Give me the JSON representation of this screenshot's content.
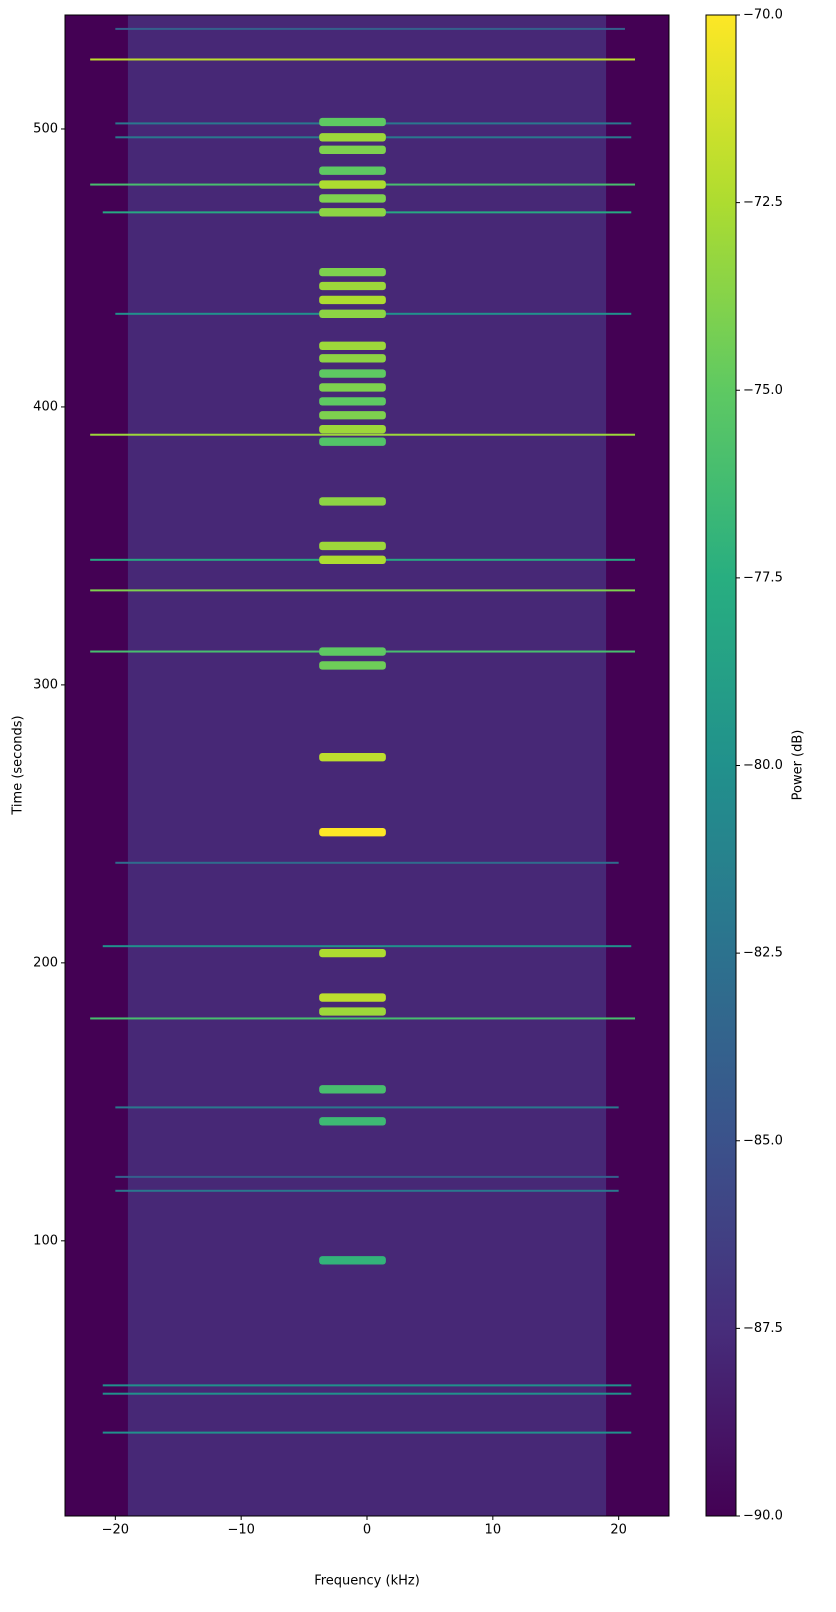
{
  "chart_data": {
    "type": "spectrogram",
    "xlabel": "Frequency (kHz)",
    "ylabel": "Time (seconds)",
    "colorbar_label": "Power (dB)",
    "colormap": "viridis",
    "xlim": [
      -24,
      24
    ],
    "xticks": [
      {
        "value": -20,
        "label": "−20"
      },
      {
        "value": -10,
        "label": "−10"
      },
      0,
      10,
      20
    ],
    "ylim": [
      1,
      541
    ],
    "yticks": [
      100,
      200,
      300,
      400,
      500
    ],
    "clim": [
      -90,
      -70
    ],
    "cticks": [
      {
        "value": -70,
        "label": "−70.0"
      },
      {
        "value": -72.5,
        "label": "−72.5"
      },
      {
        "value": -75,
        "label": "−75.0"
      },
      {
        "value": -77.5,
        "label": "−77.5"
      },
      {
        "value": -80,
        "label": "−80.0"
      },
      {
        "value": -82.5,
        "label": "−82.5"
      },
      {
        "value": -85,
        "label": "−85.0"
      },
      {
        "value": -87.5,
        "label": "−87.5"
      },
      {
        "value": -90,
        "label": "−90.0"
      }
    ],
    "background_power": -90,
    "noise_band": {
      "f": [
        -19,
        19
      ],
      "power": -87.8
    },
    "bursts": [
      {
        "t": [
          501,
          504
        ],
        "f": [
          -3.8,
          1.5
        ],
        "power": -75
      },
      {
        "t": [
          495.5,
          498.5
        ],
        "f": [
          -3.8,
          1.5
        ],
        "power": -73
      },
      {
        "t": [
          491,
          494
        ],
        "f": [
          -3.8,
          1.5
        ],
        "power": -74
      },
      {
        "t": [
          483.5,
          486.5
        ],
        "f": [
          -3.8,
          1.5
        ],
        "power": -75
      },
      {
        "t": [
          478.5,
          481.5
        ],
        "f": [
          -3.8,
          1.5
        ],
        "power": -72.5
      },
      {
        "t": [
          473.5,
          476.5
        ],
        "f": [
          -3.8,
          1.5
        ],
        "power": -74
      },
      {
        "t": [
          468.5,
          471.5
        ],
        "f": [
          -3.8,
          1.5
        ],
        "power": -73.5
      },
      {
        "t": [
          447,
          450
        ],
        "f": [
          -3.8,
          1.5
        ],
        "power": -74
      },
      {
        "t": [
          442,
          445
        ],
        "f": [
          -3.8,
          1.5
        ],
        "power": -73
      },
      {
        "t": [
          437,
          440
        ],
        "f": [
          -3.8,
          1.5
        ],
        "power": -72.5
      },
      {
        "t": [
          432,
          435
        ],
        "f": [
          -3.8,
          1.5
        ],
        "power": -73.5
      },
      {
        "t": [
          420.5,
          423.5
        ],
        "f": [
          -3.8,
          1.5
        ],
        "power": -73
      },
      {
        "t": [
          416,
          419
        ],
        "f": [
          -3.8,
          1.5
        ],
        "power": -73.5
      },
      {
        "t": [
          410.5,
          413.5
        ],
        "f": [
          -3.8,
          1.5
        ],
        "power": -75
      },
      {
        "t": [
          405.5,
          408.5
        ],
        "f": [
          -3.8,
          1.5
        ],
        "power": -74
      },
      {
        "t": [
          400.5,
          403.5
        ],
        "f": [
          -3.8,
          1.5
        ],
        "power": -75
      },
      {
        "t": [
          395.5,
          398.5
        ],
        "f": [
          -3.8,
          1.5
        ],
        "power": -74
      },
      {
        "t": [
          390.5,
          393.5
        ],
        "f": [
          -3.8,
          1.5
        ],
        "power": -73
      },
      {
        "t": [
          386,
          389
        ],
        "f": [
          -3.8,
          1.5
        ],
        "power": -75.5
      },
      {
        "t": [
          364.5,
          367.5
        ],
        "f": [
          -3.8,
          1.5
        ],
        "power": -73.5
      },
      {
        "t": [
          348.5,
          351.5
        ],
        "f": [
          -3.8,
          1.5
        ],
        "power": -73
      },
      {
        "t": [
          343.5,
          346.5
        ],
        "f": [
          -3.8,
          1.5
        ],
        "power": -72.5
      },
      {
        "t": [
          310.5,
          313.5
        ],
        "f": [
          -3.8,
          1.5
        ],
        "power": -75
      },
      {
        "t": [
          305.5,
          308.5
        ],
        "f": [
          -3.8,
          1.5
        ],
        "power": -74.5
      },
      {
        "t": [
          272.5,
          275.5
        ],
        "f": [
          -3.8,
          1.5
        ],
        "power": -72
      },
      {
        "t": [
          245.5,
          248.5
        ],
        "f": [
          -3.8,
          1.5
        ],
        "power": -70
      },
      {
        "t": [
          202,
          205
        ],
        "f": [
          -3.8,
          1.5
        ],
        "power": -72.5
      },
      {
        "t": [
          186,
          189
        ],
        "f": [
          -3.8,
          1.5
        ],
        "power": -72
      },
      {
        "t": [
          181,
          184
        ],
        "f": [
          -3.8,
          1.5
        ],
        "power": -73
      },
      {
        "t": [
          153,
          156
        ],
        "f": [
          -3.8,
          1.5
        ],
        "power": -76
      },
      {
        "t": [
          141.5,
          144.5
        ],
        "f": [
          -3.8,
          1.5
        ],
        "power": -76.5
      },
      {
        "t": [
          91.5,
          94.5
        ],
        "f": [
          -3.8,
          1.5
        ],
        "power": -77
      }
    ],
    "lines": [
      {
        "t": 536,
        "f": [
          -20,
          20.5
        ],
        "power": -84
      },
      {
        "t": 525,
        "f": [
          -22,
          21.3
        ],
        "power": -72
      },
      {
        "t": 502,
        "f": [
          -20,
          21
        ],
        "power": -82
      },
      {
        "t": 497,
        "f": [
          -20,
          21
        ],
        "power": -82
      },
      {
        "t": 480,
        "f": [
          -22,
          21.3
        ],
        "power": -76
      },
      {
        "t": 470,
        "f": [
          -21,
          21
        ],
        "power": -78
      },
      {
        "t": 433.5,
        "f": [
          -20,
          21
        ],
        "power": -80
      },
      {
        "t": 390,
        "f": [
          -22,
          21.3
        ],
        "power": -73
      },
      {
        "t": 345,
        "f": [
          -22,
          21.3
        ],
        "power": -78
      },
      {
        "t": 334,
        "f": [
          -22,
          21.3
        ],
        "power": -74
      },
      {
        "t": 312,
        "f": [
          -22,
          21.3
        ],
        "power": -76
      },
      {
        "t": 236,
        "f": [
          -20,
          20
        ],
        "power": -83
      },
      {
        "t": 206,
        "f": [
          -21,
          21
        ],
        "power": -80
      },
      {
        "t": 180,
        "f": [
          -22,
          21.3
        ],
        "power": -76
      },
      {
        "t": 148,
        "f": [
          -20,
          20
        ],
        "power": -82
      },
      {
        "t": 123,
        "f": [
          -20,
          20
        ],
        "power": -84
      },
      {
        "t": 118,
        "f": [
          -20,
          20
        ],
        "power": -82
      },
      {
        "t": 48,
        "f": [
          -21,
          21
        ],
        "power": -80
      },
      {
        "t": 45,
        "f": [
          -21,
          21
        ],
        "power": -80
      },
      {
        "t": 31,
        "f": [
          -21,
          21
        ],
        "power": -80
      }
    ]
  }
}
